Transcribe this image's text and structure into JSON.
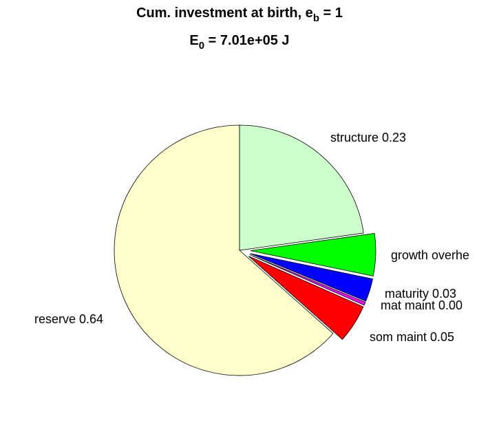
{
  "chart_data": {
    "type": "pie",
    "title": {
      "text": "Cum. investment at birth, e",
      "sub": "b",
      "rest": " = 1"
    },
    "subtitle": {
      "text": "E",
      "sub": "0",
      "rest": " = 7.01e+05 J"
    },
    "labels": [
      "structure 0.23",
      "growth overhe",
      "maturity 0.03",
      "mat maint 0.00",
      "som maint 0.05",
      "reserve 0.64"
    ],
    "values": [
      0.23,
      0.055,
      0.03,
      0.004,
      0.05,
      0.64
    ],
    "colors": [
      "#ccffcc",
      "#00ff00",
      "#0000ff",
      "#ff00ff",
      "#ff0000",
      "#ffffcc"
    ],
    "explode": [
      false,
      true,
      true,
      true,
      true,
      false
    ]
  }
}
